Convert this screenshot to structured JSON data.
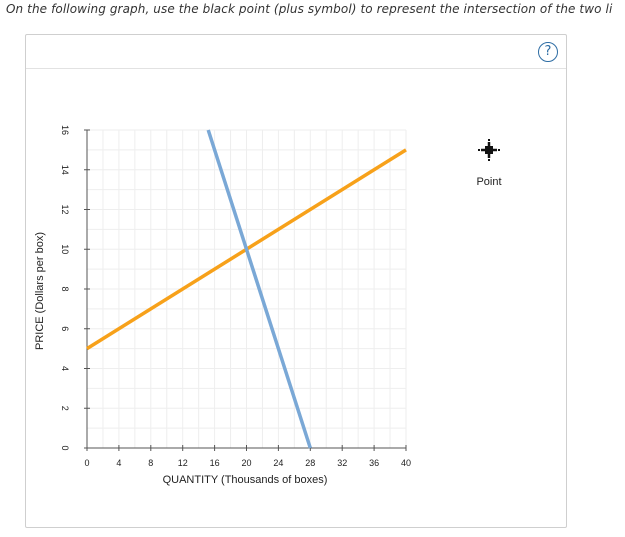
{
  "instruction_text": "On the following graph, use the black point (plus symbol) to represent the intersection of the two li",
  "help_button": {
    "label": "?"
  },
  "tool": {
    "label": "Point",
    "icon": "plus-point-icon"
  },
  "colors": {
    "supply": "#f7a11a",
    "demand": "#7aa8d6",
    "grid": "#eeeeee",
    "axis": "#555555"
  },
  "chart_data": {
    "type": "line",
    "xlabel": "QUANTITY (Thousands of boxes)",
    "ylabel": "PRICE (Dollars per box)",
    "xlim": [
      0,
      40
    ],
    "ylim": [
      0,
      16
    ],
    "xticks": [
      0,
      4,
      8,
      12,
      16,
      20,
      24,
      28,
      32,
      36,
      40
    ],
    "yticks": [
      0,
      2,
      4,
      6,
      8,
      10,
      12,
      14,
      16
    ],
    "grid": true,
    "series": [
      {
        "points": [
          [
            0,
            5
          ],
          [
            40,
            15
          ]
        ]
      },
      {
        "points": [
          [
            15.2,
            16
          ],
          [
            28,
            0
          ]
        ]
      }
    ]
  }
}
